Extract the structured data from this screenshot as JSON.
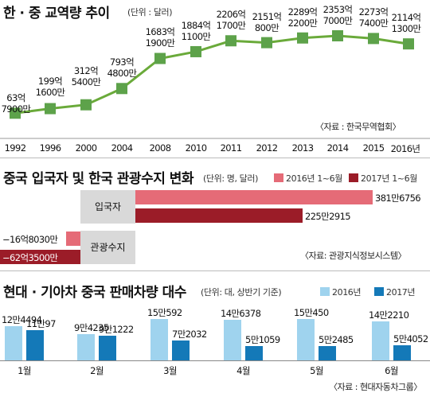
{
  "colors": {
    "line": "#6aaa3a",
    "marker": "#5da24a",
    "bar2016_tourism": "#e56b77",
    "bar2017_tourism": "#9b1c28",
    "bar2016_sales": "#9fd3ee",
    "bar2017_sales": "#1479b8",
    "category_box": "#d9d9d9"
  },
  "chart_data": [
    {
      "type": "line",
      "title": "한 · 중 교역량 추이",
      "unit": "(단위 : 달러)",
      "source": "〈자료 : 한국무역협회〉",
      "x": [
        "1992",
        "1996",
        "2000",
        "2004",
        "2008",
        "2010",
        "2011",
        "2012",
        "2013",
        "2014",
        "2015",
        "2016년"
      ],
      "values": [
        637900,
        1991600,
        3125400,
        7934800,
        16831900,
        18841100,
        22061700,
        21510800,
        22892200,
        23537000,
        22737400,
        21141300
      ],
      "labels": [
        "63억\n7900만",
        "199억\n1600만",
        "312억\n5400만",
        "793억\n4800만",
        "1683억\n1900만",
        "1884억\n1100만",
        "2206억\n1700만",
        "2151억\n800만",
        "2289억\n2200만",
        "2353억\n7000만",
        "2273억\n7400만",
        "2114억\n1300만"
      ]
    },
    {
      "type": "bar",
      "title": "중국 입국자 및 한국 관광수지 변화",
      "unit": "(단위: 명, 달러)",
      "source": "〈자료: 관광지식정보시스템〉",
      "legend": [
        "2016년 1~6월",
        "2017년 1~6월"
      ],
      "categories": [
        "입국자",
        "관광수지"
      ],
      "series": [
        {
          "name": "2016년 1~6월",
          "values": [
            3816756,
            -1680300000
          ],
          "labels": [
            "381만6756",
            "−16억8030만"
          ]
        },
        {
          "name": "2017년 1~6월",
          "values": [
            2252915,
            -6235000000
          ],
          "labels": [
            "225만2915",
            "−62억3500만"
          ]
        }
      ]
    },
    {
      "type": "bar",
      "title": "현대 · 기아차 중국 판매차량 대수",
      "unit": "(단위: 대, 상반기 기준)",
      "source": "〈자료 : 현대자동차그룹〉",
      "legend": [
        "2016년",
        "2017년"
      ],
      "categories": [
        "1월",
        "2월",
        "3월",
        "4월",
        "5월",
        "6월"
      ],
      "series": [
        {
          "name": "2016년",
          "values": [
            124494,
            94235,
            150592,
            146378,
            150450,
            142210
          ],
          "labels": [
            "12만4494",
            "9만4235",
            "15만592",
            "14만6378",
            "15만450",
            "14만2210"
          ]
        },
        {
          "name": "2017년",
          "values": [
            110097,
            91222,
            72032,
            51059,
            52485,
            54052
          ],
          "labels": [
            "11만97",
            "9만1222",
            "7만2032",
            "5만1059",
            "5만2485",
            "5만4052"
          ]
        }
      ]
    }
  ]
}
